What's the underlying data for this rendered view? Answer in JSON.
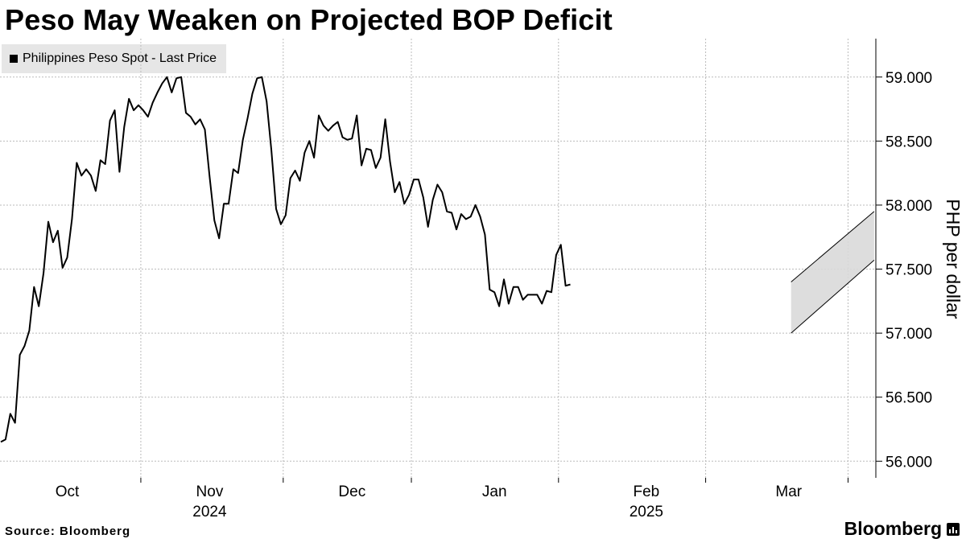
{
  "title": "Peso May Weaken on Projected BOP Deficit",
  "legend": "Philippines Peso Spot - Last Price",
  "source": "Source: Bloomberg",
  "brand": "Bloomberg",
  "brand_icon": "bloomberg-terminal-icon",
  "colors": {
    "line": "#000000",
    "grid": "#bbbbbb",
    "channel_fill": "#d9d9d9",
    "legend_bg": "#e6e6e6"
  },
  "chart_data": {
    "type": "line",
    "title": "Peso May Weaken on Projected BOP Deficit",
    "ylabel": "PHP per dollar",
    "xlabel": "",
    "ylim": [
      55.87,
      59.3
    ],
    "yticks": [
      56.0,
      56.5,
      57.0,
      57.5,
      58.0,
      58.5,
      59.0
    ],
    "ytick_labels": [
      "56.000",
      "56.500",
      "57.000",
      "57.500",
      "58.000",
      "58.500",
      "59.000"
    ],
    "month_labels": [
      {
        "label": "Oct",
        "index": 14
      },
      {
        "label": "Nov",
        "index": 44
      },
      {
        "label": "Dec",
        "index": 74
      },
      {
        "label": "Jan",
        "index": 104
      },
      {
        "label": "Feb",
        "index": 136
      },
      {
        "label": "Mar",
        "index": 166
      }
    ],
    "month_boundaries": [
      29.5,
      59.5,
      86.5,
      117.5,
      148.5,
      178.5
    ],
    "year_labels": [
      {
        "label": "2024",
        "index": 44
      },
      {
        "label": "2025",
        "index": 136
      }
    ],
    "x_count": 184,
    "grid": true,
    "legend_position": "top-left",
    "series": [
      {
        "name": "Philippines Peso Spot - Last Price",
        "values": [
          56.15,
          56.17,
          56.37,
          56.3,
          56.83,
          56.9,
          57.02,
          57.36,
          57.21,
          57.47,
          57.87,
          57.71,
          57.8,
          57.51,
          57.59,
          57.89,
          58.33,
          58.23,
          58.28,
          58.23,
          58.11,
          58.35,
          58.32,
          58.66,
          58.74,
          58.26,
          58.61,
          58.83,
          58.74,
          58.78,
          58.74,
          58.69,
          58.8,
          58.88,
          58.95,
          59.0,
          58.88,
          58.99,
          59.0,
          58.72,
          58.69,
          58.63,
          58.67,
          58.59,
          58.22,
          57.88,
          57.74,
          58.01,
          58.01,
          58.28,
          58.25,
          58.51,
          58.68,
          58.87,
          58.99,
          59.0,
          58.81,
          58.43,
          57.97,
          57.85,
          57.92,
          58.21,
          58.27,
          58.19,
          58.41,
          58.5,
          58.37,
          58.7,
          58.62,
          58.58,
          58.62,
          58.65,
          58.53,
          58.51,
          58.52,
          58.7,
          58.31,
          58.44,
          58.43,
          58.29,
          58.37,
          58.67,
          58.34,
          58.1,
          58.18,
          58.01,
          58.08,
          58.2,
          58.2,
          58.06,
          57.83,
          58.04,
          58.16,
          58.1,
          57.95,
          57.94,
          57.81,
          57.93,
          57.89,
          57.91,
          58.0,
          57.91,
          57.77,
          57.34,
          57.32,
          57.21,
          57.42,
          57.23,
          57.36,
          57.36,
          57.26,
          57.3,
          57.3,
          57.3,
          57.23,
          57.33,
          57.32,
          57.61,
          57.69,
          57.37,
          57.38
        ]
      }
    ],
    "annotations": [
      {
        "type": "channel",
        "x_start": 166.5,
        "x_end": 184,
        "upper": [
          57.4,
          57.95
        ],
        "lower": [
          57.0,
          57.57
        ]
      }
    ]
  }
}
